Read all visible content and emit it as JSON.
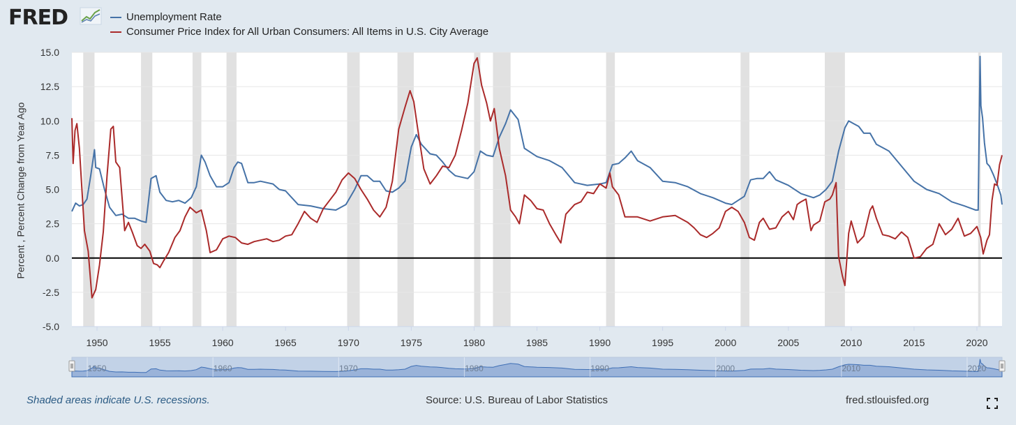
{
  "header": {
    "logo_text": "FRED",
    "logo_icon": "line-chart-icon"
  },
  "footer": {
    "recession_note": "Shaded areas indicate U.S. recessions.",
    "source": "Source: U.S. Bureau of Labor Statistics",
    "url": "fred.stlouisfed.org",
    "fullscreen_icon": "fullscreen-icon"
  },
  "colors": {
    "unemployment": "#4572a7",
    "cpi": "#aa2a2a",
    "recession": "#e1e1e1",
    "navigator": "#a9bfe0",
    "background": "#e1e9f0"
  },
  "chart_data": {
    "type": "line",
    "title": "",
    "xlabel": "",
    "ylabel": "Percent , Percent Change from Year Ago",
    "xlim": [
      1948.0,
      2022.0
    ],
    "ylim": [
      -5.0,
      15.0
    ],
    "yticks": [
      "-5.0",
      "-2.5",
      "0.0",
      "2.5",
      "5.0",
      "7.5",
      "10.0",
      "12.5",
      "15.0"
    ],
    "xticks": [
      "1950",
      "1955",
      "1960",
      "1965",
      "1970",
      "1975",
      "1980",
      "1985",
      "1990",
      "1995",
      "2000",
      "2005",
      "2010",
      "2015",
      "2020"
    ],
    "navigator_ticks": [
      "1950",
      "1960",
      "1970",
      "1980",
      "1990",
      "2000",
      "2010",
      "2020"
    ],
    "grid": true,
    "legend_position": "top-left",
    "recessions": [
      [
        1948.9,
        1949.8
      ],
      [
        1953.5,
        1954.4
      ],
      [
        1957.6,
        1958.3
      ],
      [
        1960.3,
        1961.1
      ],
      [
        1969.9,
        1970.9
      ],
      [
        1973.9,
        1975.2
      ],
      [
        1980.0,
        1980.5
      ],
      [
        1981.5,
        1982.9
      ],
      [
        1990.5,
        1991.2
      ],
      [
        2001.2,
        2001.9
      ],
      [
        2007.9,
        2009.5
      ],
      [
        2020.1,
        2020.3
      ]
    ],
    "series": [
      {
        "name": "Unemployment Rate",
        "x": [
          1948.0,
          1948.3,
          1948.6,
          1948.9,
          1949.2,
          1949.5,
          1949.8,
          1949.9,
          1950.2,
          1950.6,
          1951.0,
          1951.5,
          1952.0,
          1952.5,
          1953.0,
          1953.5,
          1953.9,
          1954.3,
          1954.7,
          1955.0,
          1955.5,
          1956.0,
          1956.5,
          1957.0,
          1957.5,
          1957.9,
          1958.3,
          1958.6,
          1959.0,
          1959.5,
          1960.0,
          1960.5,
          1960.9,
          1961.2,
          1961.5,
          1962.0,
          1962.5,
          1963.0,
          1963.5,
          1964.0,
          1964.5,
          1965.0,
          1965.5,
          1966.0,
          1967.0,
          1968.0,
          1969.0,
          1969.8,
          1970.5,
          1971.0,
          1971.5,
          1972.0,
          1972.5,
          1973.0,
          1973.5,
          1974.0,
          1974.5,
          1975.0,
          1975.4,
          1975.8,
          1976.5,
          1977.0,
          1977.5,
          1978.0,
          1978.5,
          1979.0,
          1979.5,
          1980.0,
          1980.5,
          1981.0,
          1981.5,
          1982.0,
          1982.5,
          1982.9,
          1983.5,
          1984.0,
          1985.0,
          1986.0,
          1987.0,
          1988.0,
          1989.0,
          1990.0,
          1990.5,
          1991.0,
          1991.5,
          1992.0,
          1992.5,
          1993.0,
          1994.0,
          1995.0,
          1996.0,
          1997.0,
          1998.0,
          1999.0,
          2000.0,
          2000.5,
          2001.0,
          2001.5,
          2002.0,
          2002.5,
          2003.0,
          2003.5,
          2004.0,
          2005.0,
          2006.0,
          2007.0,
          2007.5,
          2008.0,
          2008.5,
          2009.0,
          2009.5,
          2009.8,
          2010.2,
          2010.6,
          2011.0,
          2011.5,
          2012.0,
          2013.0,
          2014.0,
          2015.0,
          2016.0,
          2017.0,
          2018.0,
          2019.0,
          2019.9,
          2020.1,
          2020.25,
          2020.32,
          2020.45,
          2020.6,
          2020.8,
          2021.0,
          2021.3,
          2021.6,
          2021.9,
          2022.0
        ],
        "values": [
          3.4,
          4.0,
          3.8,
          3.9,
          4.3,
          6.0,
          7.9,
          6.6,
          6.5,
          5.0,
          3.7,
          3.1,
          3.2,
          2.9,
          2.9,
          2.7,
          2.6,
          5.8,
          6.0,
          4.8,
          4.2,
          4.1,
          4.2,
          4.0,
          4.4,
          5.2,
          7.5,
          7.0,
          6.0,
          5.2,
          5.2,
          5.5,
          6.6,
          7.0,
          6.9,
          5.5,
          5.5,
          5.6,
          5.5,
          5.4,
          5.0,
          4.9,
          4.4,
          3.9,
          3.8,
          3.6,
          3.5,
          3.9,
          5.0,
          6.0,
          6.0,
          5.6,
          5.6,
          4.9,
          4.8,
          5.1,
          5.6,
          8.1,
          9.0,
          8.3,
          7.6,
          7.5,
          7.0,
          6.4,
          6.0,
          5.9,
          5.8,
          6.3,
          7.8,
          7.5,
          7.4,
          8.8,
          9.8,
          10.8,
          10.1,
          8.0,
          7.4,
          7.1,
          6.6,
          5.5,
          5.3,
          5.4,
          5.5,
          6.8,
          6.9,
          7.3,
          7.8,
          7.1,
          6.6,
          5.6,
          5.5,
          5.2,
          4.7,
          4.4,
          4.0,
          3.9,
          4.2,
          4.5,
          5.7,
          5.8,
          5.8,
          6.3,
          5.7,
          5.3,
          4.7,
          4.4,
          4.6,
          5.0,
          5.6,
          7.8,
          9.5,
          10.0,
          9.8,
          9.6,
          9.1,
          9.1,
          8.3,
          7.8,
          6.7,
          5.6,
          5.0,
          4.7,
          4.1,
          3.8,
          3.5,
          3.5,
          14.7,
          11.1,
          10.2,
          8.4,
          6.9,
          6.7,
          6.1,
          5.4,
          4.6,
          3.9
        ]
      },
      {
        "name": "Consumer Price Index for All Urban Consumers: All Items in U.S. City Average",
        "x": [
          1948.0,
          1948.1,
          1948.25,
          1948.4,
          1948.6,
          1949.0,
          1949.3,
          1949.6,
          1949.9,
          1950.2,
          1950.5,
          1950.8,
          1951.1,
          1951.3,
          1951.5,
          1951.8,
          1952.2,
          1952.5,
          1952.8,
          1953.2,
          1953.5,
          1953.8,
          1954.2,
          1954.5,
          1954.8,
          1955.0,
          1955.3,
          1955.7,
          1956.2,
          1956.6,
          1957.0,
          1957.4,
          1957.9,
          1958.3,
          1958.7,
          1959.0,
          1959.5,
          1960.0,
          1960.5,
          1961.0,
          1961.5,
          1962.0,
          1962.5,
          1963.0,
          1963.5,
          1964.0,
          1964.5,
          1965.0,
          1965.5,
          1966.0,
          1966.5,
          1967.0,
          1967.5,
          1968.0,
          1968.5,
          1969.0,
          1969.5,
          1970.0,
          1970.5,
          1971.0,
          1971.5,
          1972.0,
          1972.5,
          1973.0,
          1973.5,
          1974.0,
          1974.5,
          1974.9,
          1975.2,
          1975.5,
          1976.0,
          1976.5,
          1977.0,
          1977.5,
          1978.0,
          1978.5,
          1979.0,
          1979.5,
          1980.0,
          1980.25,
          1980.6,
          1981.0,
          1981.3,
          1981.6,
          1982.0,
          1982.5,
          1982.9,
          1983.3,
          1983.6,
          1984.0,
          1984.5,
          1985.0,
          1985.5,
          1986.0,
          1986.5,
          1986.9,
          1987.3,
          1988.0,
          1988.5,
          1989.0,
          1989.5,
          1990.0,
          1990.5,
          1990.8,
          1991.0,
          1991.5,
          1992.0,
          1993.0,
          1994.0,
          1995.0,
          1996.0,
          1997.0,
          1997.5,
          1998.0,
          1998.5,
          1999.0,
          1999.5,
          2000.0,
          2000.5,
          2001.0,
          2001.5,
          2001.9,
          2002.3,
          2002.7,
          2003.0,
          2003.5,
          2004.0,
          2004.5,
          2005.0,
          2005.4,
          2005.7,
          2006.0,
          2006.4,
          2006.8,
          2007.0,
          2007.5,
          2007.9,
          2008.3,
          2008.5,
          2008.8,
          2009.0,
          2009.3,
          2009.5,
          2009.8,
          2010.0,
          2010.5,
          2011.0,
          2011.5,
          2011.7,
          2012.0,
          2012.5,
          2013.0,
          2013.5,
          2014.0,
          2014.5,
          2015.0,
          2015.5,
          2016.0,
          2016.5,
          2017.0,
          2017.5,
          2018.0,
          2018.5,
          2019.0,
          2019.5,
          2020.0,
          2020.3,
          2020.5,
          2020.8,
          2021.0,
          2021.2,
          2021.4,
          2021.6,
          2021.8,
          2022.0
        ],
        "values": [
          10.2,
          6.9,
          9.3,
          9.8,
          8.0,
          2.0,
          0.5,
          -2.9,
          -2.3,
          -0.5,
          1.9,
          6.0,
          9.4,
          9.6,
          7.0,
          6.6,
          2.0,
          2.6,
          1.9,
          0.9,
          0.7,
          1.0,
          0.5,
          -0.4,
          -0.5,
          -0.7,
          -0.2,
          0.4,
          1.5,
          2.0,
          3.0,
          3.7,
          3.3,
          3.5,
          2.0,
          0.4,
          0.6,
          1.4,
          1.6,
          1.5,
          1.1,
          1.0,
          1.2,
          1.3,
          1.4,
          1.2,
          1.3,
          1.6,
          1.7,
          2.5,
          3.4,
          2.9,
          2.6,
          3.6,
          4.2,
          4.8,
          5.7,
          6.2,
          5.8,
          5.0,
          4.3,
          3.5,
          3.0,
          3.7,
          5.6,
          9.4,
          11.0,
          12.2,
          11.4,
          9.5,
          6.5,
          5.4,
          6.0,
          6.7,
          6.6,
          7.5,
          9.3,
          11.3,
          14.2,
          14.6,
          12.6,
          11.3,
          10.0,
          10.9,
          8.0,
          6.0,
          3.5,
          3.0,
          2.5,
          4.6,
          4.2,
          3.6,
          3.5,
          2.5,
          1.7,
          1.1,
          3.2,
          3.9,
          4.1,
          4.8,
          4.7,
          5.4,
          5.1,
          6.2,
          5.2,
          4.6,
          3.0,
          3.0,
          2.7,
          3.0,
          3.1,
          2.6,
          2.2,
          1.7,
          1.5,
          1.8,
          2.2,
          3.4,
          3.7,
          3.4,
          2.6,
          1.5,
          1.3,
          2.6,
          2.9,
          2.1,
          2.2,
          3.0,
          3.4,
          2.8,
          3.9,
          4.1,
          4.3,
          2.0,
          2.4,
          2.7,
          4.1,
          4.3,
          4.6,
          5.5,
          0.1,
          -1.3,
          -2.0,
          1.8,
          2.7,
          1.1,
          1.6,
          3.5,
          3.8,
          2.9,
          1.7,
          1.6,
          1.4,
          1.9,
          1.5,
          0.0,
          0.1,
          0.7,
          1.0,
          2.5,
          1.7,
          2.1,
          2.9,
          1.6,
          1.8,
          2.3,
          1.5,
          0.3,
          1.3,
          1.7,
          4.2,
          5.4,
          5.3,
          6.8,
          7.5
        ]
      }
    ]
  }
}
